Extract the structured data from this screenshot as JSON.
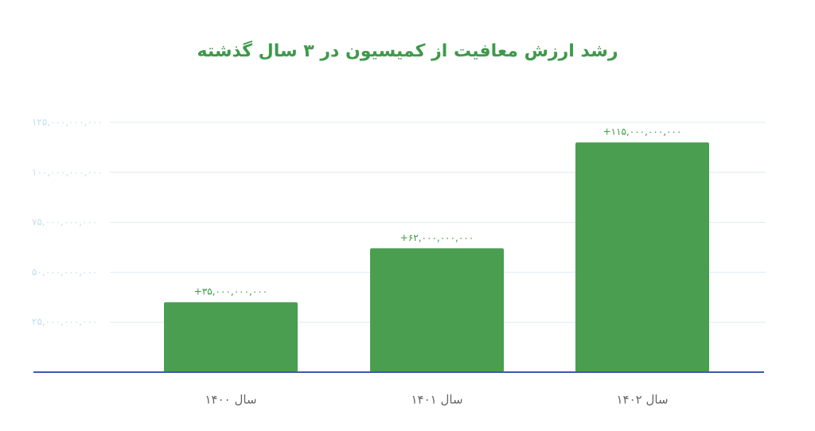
{
  "chart_data": {
    "type": "bar",
    "title": "رشد ارزش معافیت از کمیسیون در ۳ سال گذشته",
    "categories": [
      "سال ۱۴۰۰",
      "سال ۱۴۰۱",
      "سال ۱۴۰۲"
    ],
    "values": [
      35000000000,
      62000000000,
      115000000000
    ],
    "value_labels": [
      "+۳۵,۰۰۰,۰۰۰,۰۰۰",
      "+۶۲,۰۰۰,۰۰۰,۰۰۰",
      "+۱۱۵,۰۰۰,۰۰۰,۰۰۰"
    ],
    "color": "#4a9e50",
    "ylim": [
      0,
      125000000000
    ],
    "yticks": [
      {
        "value": 25000000000,
        "label": "۲۵,۰۰۰,۰۰۰,۰۰۰"
      },
      {
        "value": 50000000000,
        "label": "۵۰,۰۰۰,۰۰۰,۰۰۰"
      },
      {
        "value": 75000000000,
        "label": "۷۵,۰۰۰,۰۰۰,۰۰۰"
      },
      {
        "value": 100000000000,
        "label": "۱۰۰,۰۰۰,۰۰۰,۰۰۰"
      },
      {
        "value": 125000000000,
        "label": "۱۲۵,۰۰۰,۰۰۰,۰۰۰"
      }
    ],
    "grid": true
  }
}
